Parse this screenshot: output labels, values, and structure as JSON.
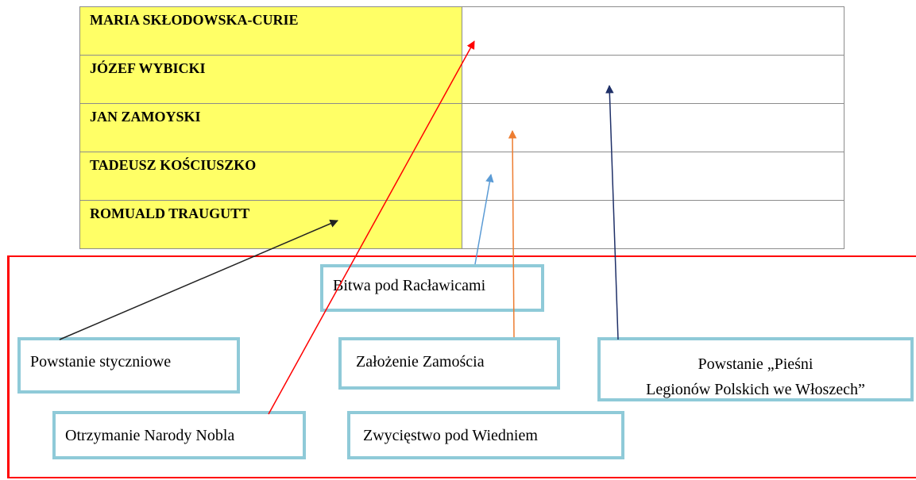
{
  "table": {
    "rows": [
      "MARIA SKŁODOWSKA-CURIE",
      "JÓZEF WYBICKI",
      "JAN ZAMOYSKI",
      "TADEUSZ KOŚCIUSZKO",
      "ROMUALD TRAUGUTT"
    ]
  },
  "events": [
    {
      "label": "Bitwa pod Racławicami"
    },
    {
      "label": "Powstanie styczniowe"
    },
    {
      "label": "Założenie Zamościa"
    },
    {
      "label_lines": [
        "Powstanie „Pieśni",
        "Legionów Polskich we Włoszech”"
      ]
    },
    {
      "label": "Otrzymanie Narody Nobla"
    },
    {
      "label": "Zwycięstwo pod Wiedniem"
    }
  ]
}
